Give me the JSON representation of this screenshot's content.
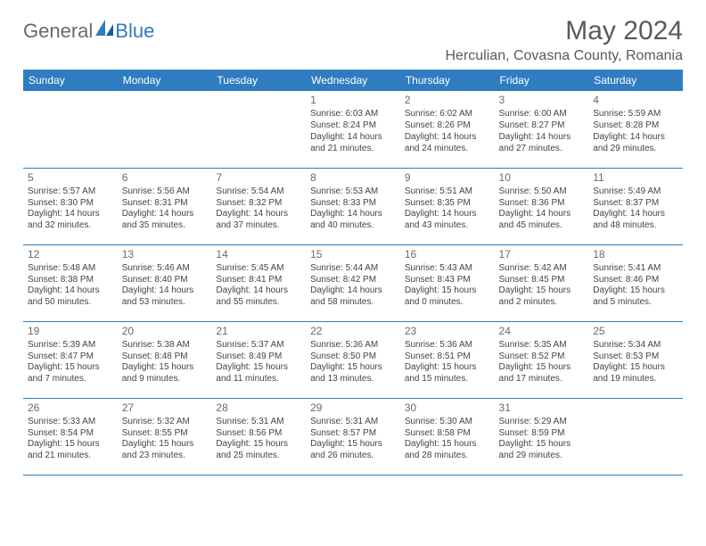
{
  "logo": {
    "text1": "General",
    "text2": "Blue"
  },
  "header": {
    "title": "May 2024",
    "location": "Herculian, Covasna County, Romania"
  },
  "calendar": {
    "header_bg": "#2f7dc0",
    "header_fg": "#ffffff",
    "border_color": "#2f7dc0",
    "days": [
      "Sunday",
      "Monday",
      "Tuesday",
      "Wednesday",
      "Thursday",
      "Friday",
      "Saturday"
    ],
    "weeks": [
      [
        null,
        null,
        null,
        {
          "n": "1",
          "sr": "6:03 AM",
          "ss": "8:24 PM",
          "dl": "14 hours and 21 minutes."
        },
        {
          "n": "2",
          "sr": "6:02 AM",
          "ss": "8:26 PM",
          "dl": "14 hours and 24 minutes."
        },
        {
          "n": "3",
          "sr": "6:00 AM",
          "ss": "8:27 PM",
          "dl": "14 hours and 27 minutes."
        },
        {
          "n": "4",
          "sr": "5:59 AM",
          "ss": "8:28 PM",
          "dl": "14 hours and 29 minutes."
        }
      ],
      [
        {
          "n": "5",
          "sr": "5:57 AM",
          "ss": "8:30 PM",
          "dl": "14 hours and 32 minutes."
        },
        {
          "n": "6",
          "sr": "5:56 AM",
          "ss": "8:31 PM",
          "dl": "14 hours and 35 minutes."
        },
        {
          "n": "7",
          "sr": "5:54 AM",
          "ss": "8:32 PM",
          "dl": "14 hours and 37 minutes."
        },
        {
          "n": "8",
          "sr": "5:53 AM",
          "ss": "8:33 PM",
          "dl": "14 hours and 40 minutes."
        },
        {
          "n": "9",
          "sr": "5:51 AM",
          "ss": "8:35 PM",
          "dl": "14 hours and 43 minutes."
        },
        {
          "n": "10",
          "sr": "5:50 AM",
          "ss": "8:36 PM",
          "dl": "14 hours and 45 minutes."
        },
        {
          "n": "11",
          "sr": "5:49 AM",
          "ss": "8:37 PM",
          "dl": "14 hours and 48 minutes."
        }
      ],
      [
        {
          "n": "12",
          "sr": "5:48 AM",
          "ss": "8:38 PM",
          "dl": "14 hours and 50 minutes."
        },
        {
          "n": "13",
          "sr": "5:46 AM",
          "ss": "8:40 PM",
          "dl": "14 hours and 53 minutes."
        },
        {
          "n": "14",
          "sr": "5:45 AM",
          "ss": "8:41 PM",
          "dl": "14 hours and 55 minutes."
        },
        {
          "n": "15",
          "sr": "5:44 AM",
          "ss": "8:42 PM",
          "dl": "14 hours and 58 minutes."
        },
        {
          "n": "16",
          "sr": "5:43 AM",
          "ss": "8:43 PM",
          "dl": "15 hours and 0 minutes."
        },
        {
          "n": "17",
          "sr": "5:42 AM",
          "ss": "8:45 PM",
          "dl": "15 hours and 2 minutes."
        },
        {
          "n": "18",
          "sr": "5:41 AM",
          "ss": "8:46 PM",
          "dl": "15 hours and 5 minutes."
        }
      ],
      [
        {
          "n": "19",
          "sr": "5:39 AM",
          "ss": "8:47 PM",
          "dl": "15 hours and 7 minutes."
        },
        {
          "n": "20",
          "sr": "5:38 AM",
          "ss": "8:48 PM",
          "dl": "15 hours and 9 minutes."
        },
        {
          "n": "21",
          "sr": "5:37 AM",
          "ss": "8:49 PM",
          "dl": "15 hours and 11 minutes."
        },
        {
          "n": "22",
          "sr": "5:36 AM",
          "ss": "8:50 PM",
          "dl": "15 hours and 13 minutes."
        },
        {
          "n": "23",
          "sr": "5:36 AM",
          "ss": "8:51 PM",
          "dl": "15 hours and 15 minutes."
        },
        {
          "n": "24",
          "sr": "5:35 AM",
          "ss": "8:52 PM",
          "dl": "15 hours and 17 minutes."
        },
        {
          "n": "25",
          "sr": "5:34 AM",
          "ss": "8:53 PM",
          "dl": "15 hours and 19 minutes."
        }
      ],
      [
        {
          "n": "26",
          "sr": "5:33 AM",
          "ss": "8:54 PM",
          "dl": "15 hours and 21 minutes."
        },
        {
          "n": "27",
          "sr": "5:32 AM",
          "ss": "8:55 PM",
          "dl": "15 hours and 23 minutes."
        },
        {
          "n": "28",
          "sr": "5:31 AM",
          "ss": "8:56 PM",
          "dl": "15 hours and 25 minutes."
        },
        {
          "n": "29",
          "sr": "5:31 AM",
          "ss": "8:57 PM",
          "dl": "15 hours and 26 minutes."
        },
        {
          "n": "30",
          "sr": "5:30 AM",
          "ss": "8:58 PM",
          "dl": "15 hours and 28 minutes."
        },
        {
          "n": "31",
          "sr": "5:29 AM",
          "ss": "8:59 PM",
          "dl": "15 hours and 29 minutes."
        },
        null
      ]
    ]
  },
  "labels": {
    "sunrise": "Sunrise: ",
    "sunset": "Sunset: ",
    "daylight": "Daylight: "
  }
}
